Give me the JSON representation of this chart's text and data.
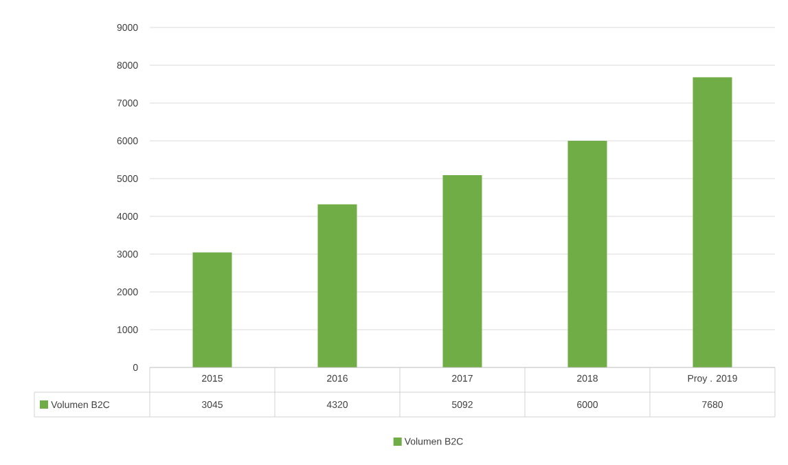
{
  "chart_data": {
    "type": "bar",
    "categories": [
      "2015",
      "2016",
      "2017",
      "2018",
      "Proy . 2019"
    ],
    "series": [
      {
        "name": "Volumen B2C",
        "color": "#70ad47",
        "values": [
          3045,
          4320,
          5092,
          6000,
          7680
        ]
      }
    ],
    "ylim": [
      0,
      9000
    ],
    "yticks": [
      0,
      1000,
      2000,
      3000,
      4000,
      5000,
      6000,
      7000,
      8000,
      9000
    ],
    "grid": "y",
    "legend": "bottom",
    "data_labels": true
  }
}
